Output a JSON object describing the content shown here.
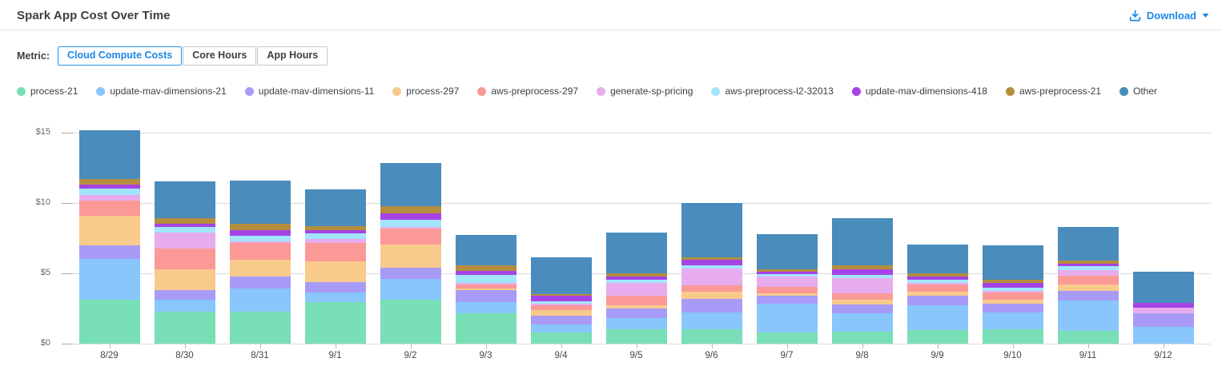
{
  "header": {
    "title": "Spark App Cost Over Time",
    "download_label": "Download"
  },
  "controls": {
    "metric_label": "Metric:",
    "tabs": [
      {
        "label": "Cloud Compute Costs",
        "selected": true
      },
      {
        "label": "Core Hours",
        "selected": false
      },
      {
        "label": "App Hours",
        "selected": false
      }
    ]
  },
  "colors": {
    "accent_blue": "#1E88E5",
    "selected_tab_border": "#2196F3",
    "gridline": "#D9D9D9"
  },
  "icons": {
    "download": "download-icon",
    "caret": "chevron-down-icon"
  },
  "chart_data": {
    "type": "bar",
    "stacked": true,
    "title": "Spark App Cost Over Time",
    "xlabel": "",
    "ylabel": "",
    "ylim": [
      0,
      15
    ],
    "grid": true,
    "legend_position": "top",
    "currency": "USD",
    "y_ticks": [
      {
        "value": 0,
        "label": "$0"
      },
      {
        "value": 5,
        "label": "$5"
      },
      {
        "value": 10,
        "label": "$10"
      },
      {
        "value": 15,
        "label": "$15"
      }
    ],
    "categories": [
      "8/29",
      "8/30",
      "8/31",
      "9/1",
      "9/2",
      "9/3",
      "9/4",
      "9/5",
      "9/6",
      "9/7",
      "9/8",
      "9/9",
      "9/10",
      "9/11",
      "9/12"
    ],
    "series": [
      {
        "name": "process-21",
        "color": "#79DFB6",
        "values": [
          3.1,
          2.25,
          2.3,
          2.95,
          3.1,
          2.15,
          0.8,
          1.05,
          1.05,
          0.8,
          0.85,
          0.95,
          1.0,
          0.9,
          0.0
        ]
      },
      {
        "name": "update-mav-dimensions-21",
        "color": "#89C6FB",
        "values": [
          2.9,
          0.9,
          1.65,
          0.7,
          1.5,
          0.8,
          0.55,
          0.75,
          1.15,
          2.05,
          1.3,
          1.8,
          1.2,
          2.15,
          1.2
        ]
      },
      {
        "name": "update-mav-dimensions-11",
        "color": "#A89BF8",
        "values": [
          1.0,
          0.65,
          0.8,
          0.75,
          0.8,
          0.85,
          0.65,
          0.7,
          1.0,
          0.55,
          0.65,
          0.65,
          0.65,
          0.7,
          0.95
        ]
      },
      {
        "name": "process-297",
        "color": "#F8CA8C",
        "values": [
          2.1,
          1.5,
          1.2,
          1.45,
          1.65,
          0.15,
          0.4,
          0.25,
          0.5,
          0.2,
          0.3,
          0.3,
          0.3,
          0.45,
          0.0
        ]
      },
      {
        "name": "aws-preprocess-297",
        "color": "#FB9997",
        "values": [
          1.05,
          1.45,
          1.2,
          1.3,
          1.15,
          0.25,
          0.35,
          0.65,
          0.45,
          0.45,
          0.5,
          0.5,
          0.5,
          0.65,
          0.0
        ]
      },
      {
        "name": "generate-sp-pricing",
        "color": "#E7ACEE",
        "values": [
          0.45,
          1.15,
          0.15,
          0.3,
          0.1,
          0.15,
          0.1,
          0.9,
          1.2,
          0.7,
          1.05,
          0.1,
          0.1,
          0.4,
          0.4
        ]
      },
      {
        "name": "aws-preprocess-l2-32013",
        "color": "#A2E5F9",
        "values": [
          0.4,
          0.4,
          0.35,
          0.4,
          0.5,
          0.55,
          0.15,
          0.25,
          0.2,
          0.2,
          0.25,
          0.25,
          0.25,
          0.25,
          0.0
        ]
      },
      {
        "name": "update-mav-dimensions-418",
        "color": "#A643E5",
        "values": [
          0.3,
          0.2,
          0.45,
          0.2,
          0.45,
          0.25,
          0.4,
          0.2,
          0.4,
          0.15,
          0.4,
          0.25,
          0.35,
          0.2,
          0.35
        ]
      },
      {
        "name": "aws-preprocess-21",
        "color": "#B58E3D",
        "values": [
          0.4,
          0.4,
          0.45,
          0.3,
          0.5,
          0.45,
          0.15,
          0.25,
          0.2,
          0.2,
          0.25,
          0.2,
          0.2,
          0.2,
          0.0
        ]
      },
      {
        "name": "Other",
        "color": "#4A8CBC",
        "values": [
          3.45,
          2.65,
          3.05,
          2.6,
          3.1,
          2.15,
          2.6,
          2.9,
          3.85,
          2.5,
          3.35,
          2.05,
          2.45,
          2.4,
          2.2
        ]
      }
    ],
    "totals": [
      15.15,
      11.55,
      11.6,
      10.95,
      12.85,
      7.75,
      6.15,
      7.9,
      10.0,
      7.8,
      8.9,
      7.05,
      7.0,
      8.3,
      5.1
    ]
  }
}
